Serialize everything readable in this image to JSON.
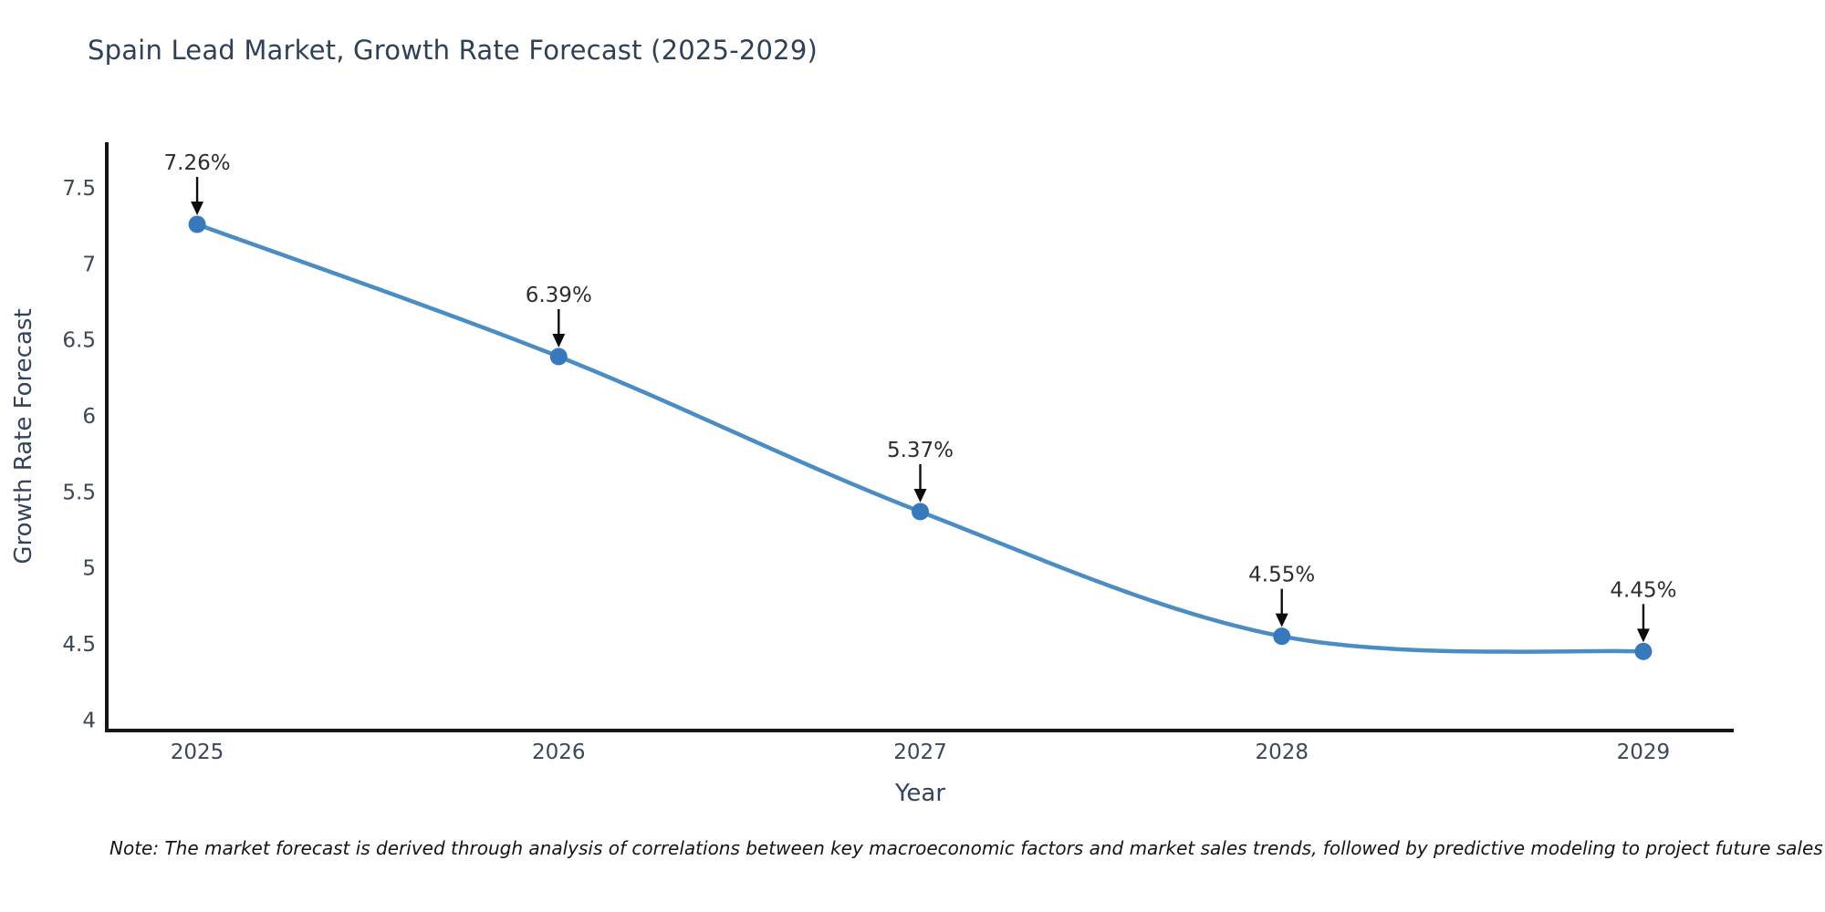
{
  "note": "Note: The market forecast is derived through analysis of correlations between key macroeconomic factors and market sales trends, followed by predictive modeling to project future sales",
  "chart_data": {
    "type": "line",
    "title": "Spain Lead Market, Growth Rate Forecast (2025-2029)",
    "xlabel": "Year",
    "ylabel": "Growth Rate Forecast",
    "x": [
      2025,
      2026,
      2027,
      2028,
      2029
    ],
    "values": [
      7.26,
      6.39,
      5.37,
      4.55,
      4.45
    ],
    "point_labels": [
      "7.26%",
      "6.39%",
      "5.37%",
      "4.55%",
      "4.45%"
    ],
    "xticks": [
      2025,
      2026,
      2027,
      2028,
      2029
    ],
    "xtick_labels": [
      "2025",
      "2026",
      "2027",
      "2028",
      "2029"
    ],
    "yticks": [
      4,
      4.5,
      5,
      5.5,
      6,
      6.5,
      7,
      7.5
    ],
    "ytick_labels": [
      "4",
      "4.5",
      "5",
      "5.5",
      "6",
      "6.5",
      "7",
      "7.5"
    ],
    "xlim": [
      2024.75,
      2029.25
    ],
    "ylim": [
      3.93,
      7.8
    ],
    "grid": false,
    "legend": "none",
    "line_shape": "spline",
    "marker": "circle",
    "annotation_arrow": "down-arrow",
    "colors": {
      "line": "#4a8cc4",
      "marker": "#3679bd",
      "axis": "#161616",
      "title_text": "#2e4156",
      "tick_text": "#3c4757",
      "axis_label_text": "#34435c",
      "annotation_text": "#2d2d2d",
      "arrow": "#0d0d0d",
      "background": "#ffffff"
    }
  }
}
